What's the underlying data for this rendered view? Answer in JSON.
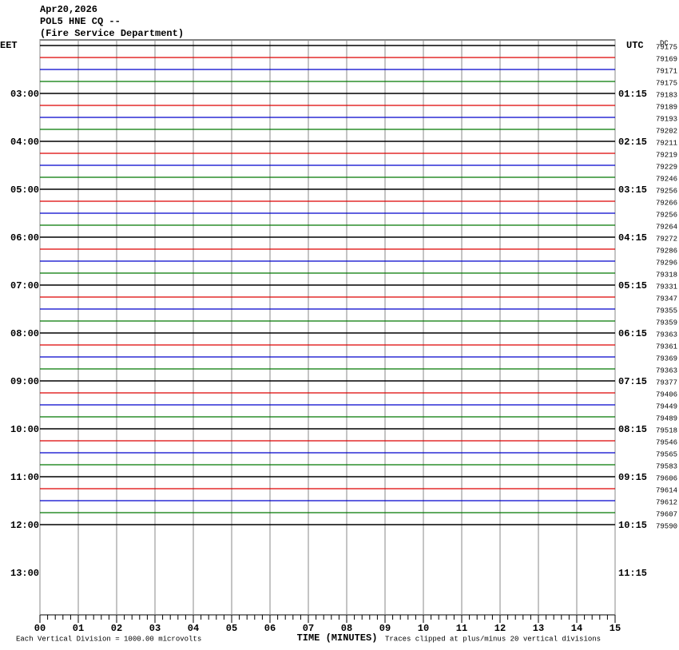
{
  "chart_data": {
    "type": "helicorder",
    "date": "Apr20,2026",
    "station": "POL5 HNE CQ --",
    "operator": "(Fire Service Department)",
    "left_zone": "EET",
    "right_zone": "UTC",
    "dc_label": "DC",
    "left_times": [
      "03:00",
      "04:00",
      "05:00",
      "06:00",
      "07:00",
      "08:00",
      "09:00",
      "10:00",
      "11:00",
      "12:00",
      "13:00"
    ],
    "right_times": [
      "01:15",
      "02:15",
      "03:15",
      "04:15",
      "05:15",
      "06:15",
      "07:15",
      "08:15",
      "09:15",
      "10:15",
      "11:15"
    ],
    "dc_values": [
      79175,
      79169,
      79171,
      79175,
      79183,
      79189,
      79193,
      79202,
      79211,
      79219,
      79229,
      79246,
      79256,
      79266,
      79256,
      79264,
      79272,
      79286,
      79296,
      79318,
      79331,
      79347,
      79355,
      79359,
      79363,
      79361,
      79369,
      79363,
      79377,
      79406,
      79449,
      79489,
      79518,
      79546,
      79565,
      79583,
      79606,
      79614,
      79612,
      79607,
      79590
    ],
    "trace_colors": [
      "#000000",
      "#dd0000",
      "#0000cc",
      "#007700"
    ],
    "xlim": [
      0,
      15
    ],
    "xticks": [
      {
        "value": 0,
        "label": "00"
      },
      {
        "value": 1,
        "label": "01"
      },
      {
        "value": 2,
        "label": "02"
      },
      {
        "value": 3,
        "label": "03"
      },
      {
        "value": 4,
        "label": "04"
      },
      {
        "value": 5,
        "label": "05"
      },
      {
        "value": 6,
        "label": "06"
      },
      {
        "value": 7,
        "label": "07"
      },
      {
        "value": 8,
        "label": "08"
      },
      {
        "value": 9,
        "label": "09"
      },
      {
        "value": 10,
        "label": "10"
      },
      {
        "value": 11,
        "label": "11"
      },
      {
        "value": 12,
        "label": "12"
      },
      {
        "value": 13,
        "label": "13"
      },
      {
        "value": 14,
        "label": "14"
      },
      {
        "value": 15,
        "label": "15"
      }
    ],
    "xlabel": "TIME (MINUTES)",
    "scale_note": "Each Vertical Division = 1000.00 microvolts",
    "clip_note": "Traces clipped at plus/minus 20 vertical divisions"
  }
}
